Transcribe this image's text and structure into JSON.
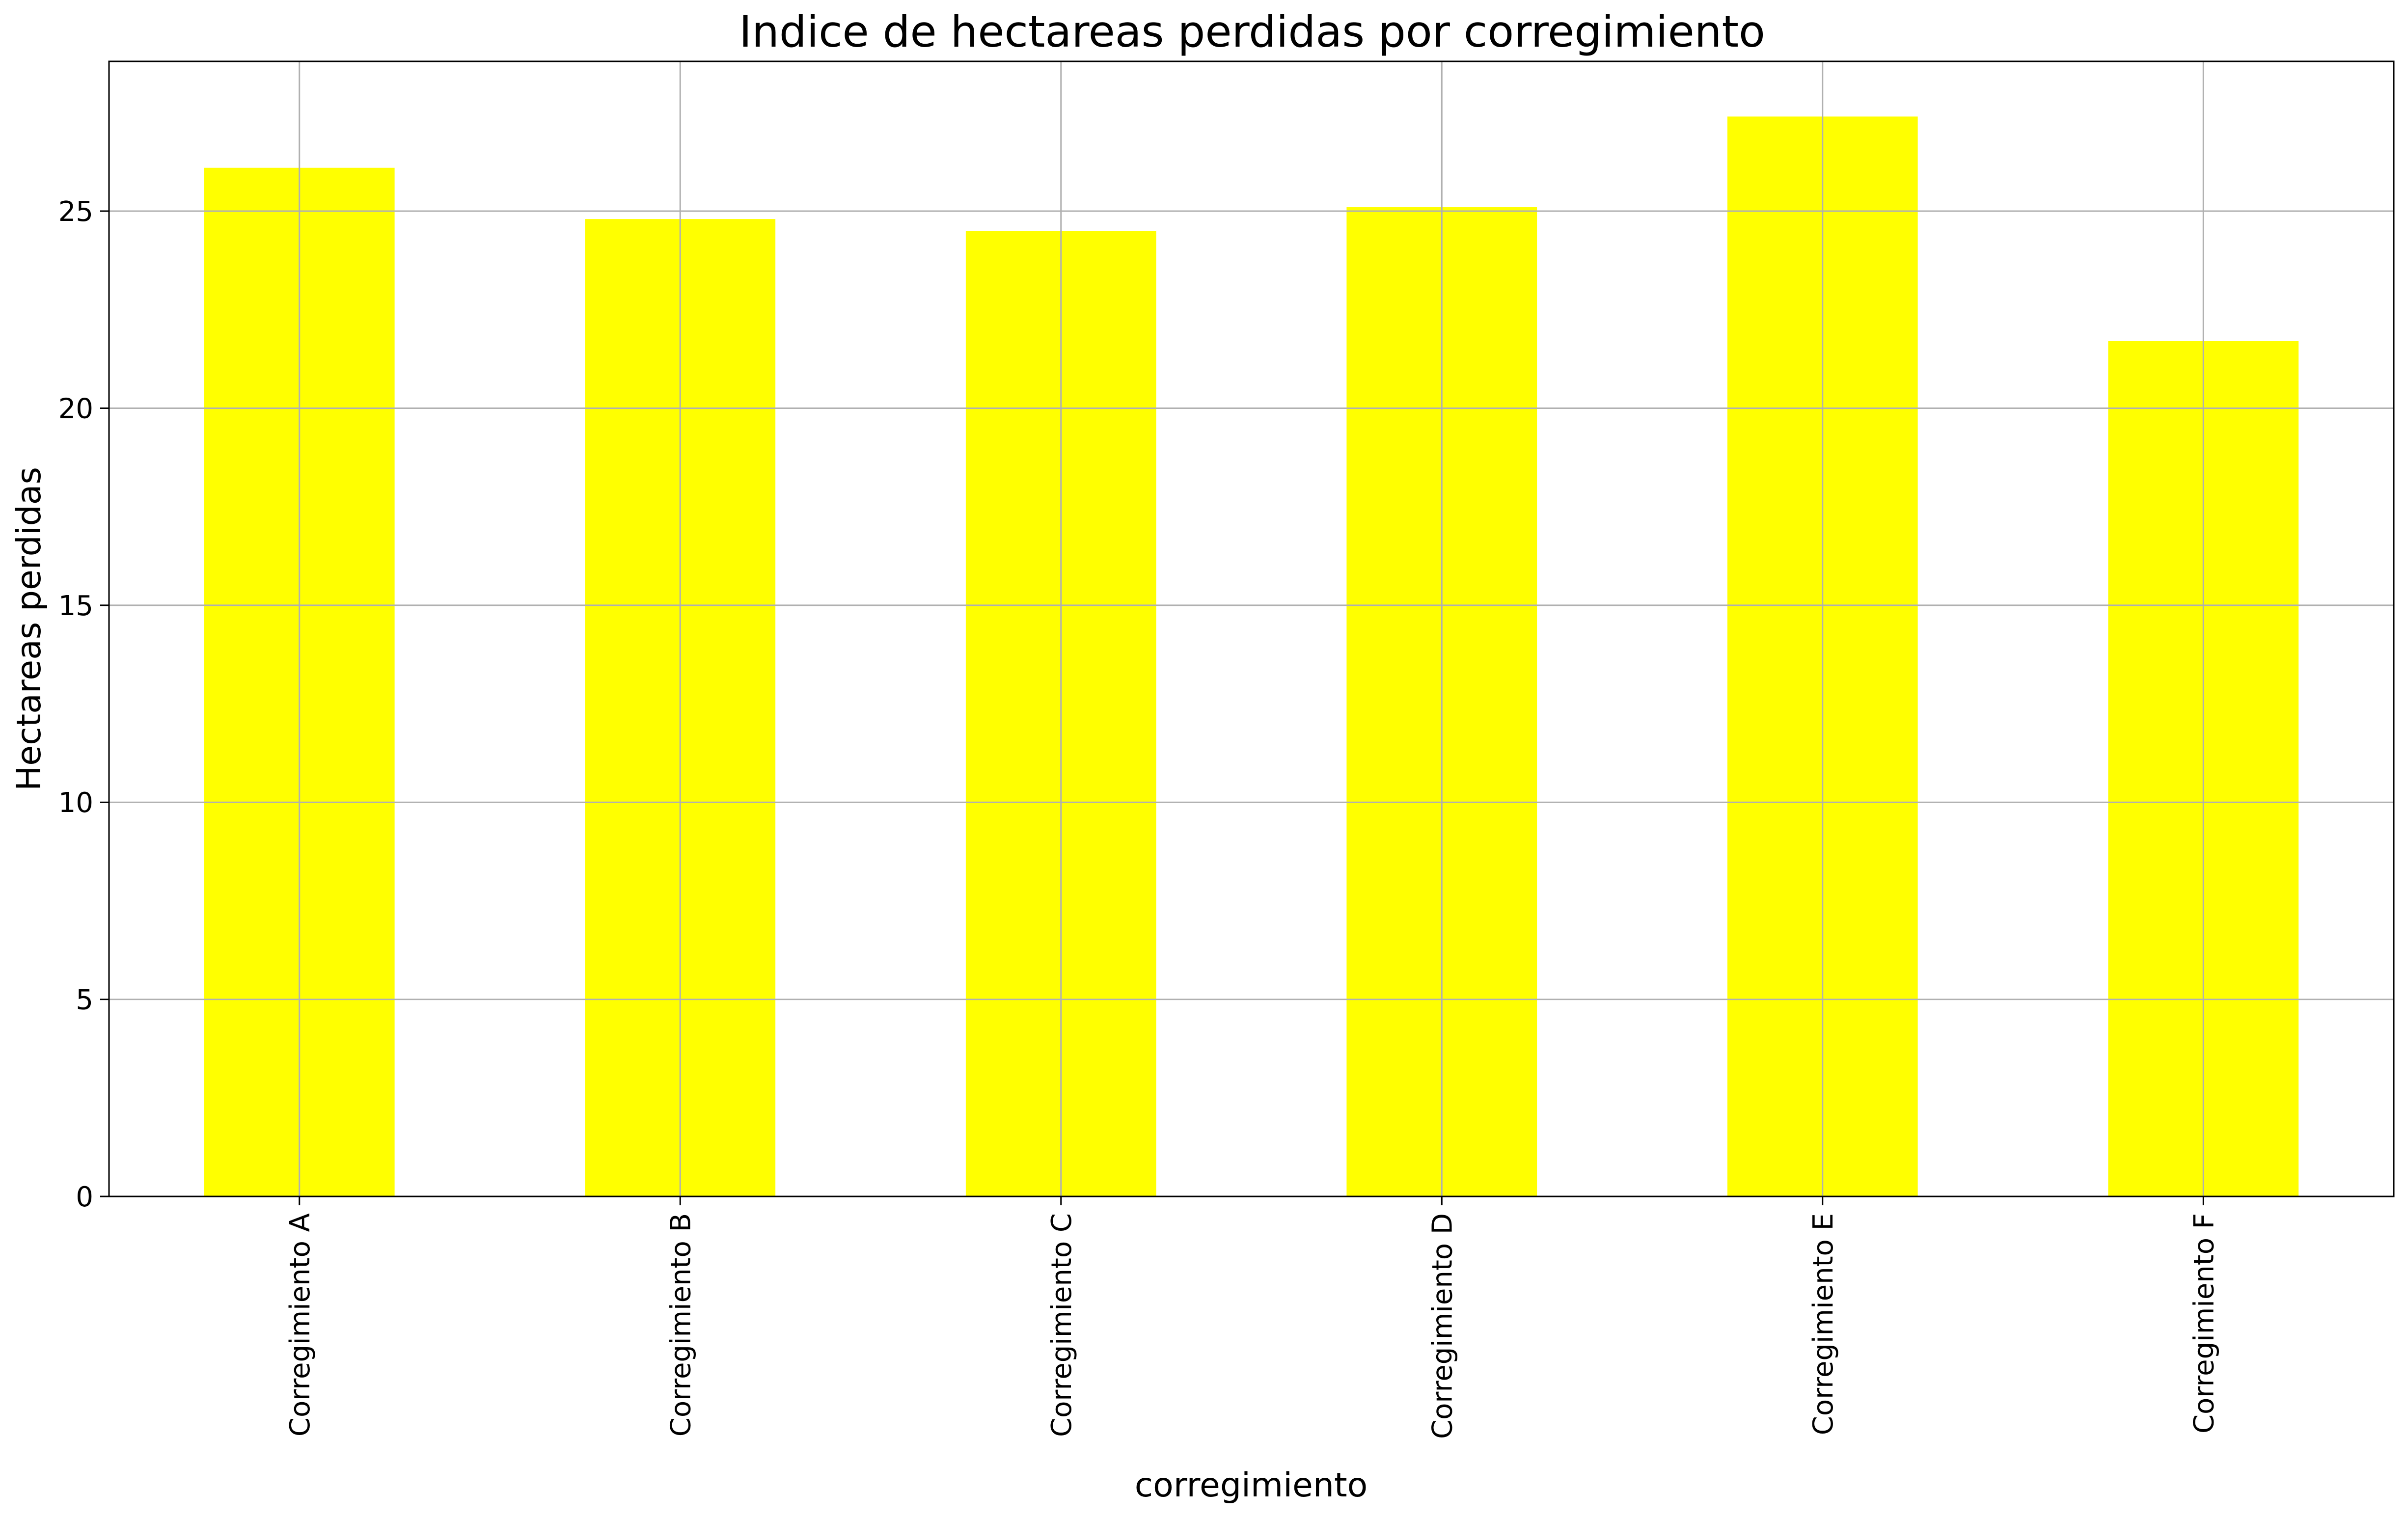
{
  "chart_data": {
    "type": "bar",
    "title": "Indice de hectareas perdidas por corregimiento",
    "xlabel": "corregimiento",
    "ylabel": "Hectareas perdidas",
    "categories": [
      "Corregimiento A",
      "Corregimiento B",
      "Corregimiento C",
      "Corregimiento D",
      "Corregimiento E",
      "Corregimiento F"
    ],
    "values": [
      26.1,
      24.8,
      24.5,
      25.1,
      27.4,
      21.7
    ],
    "ylim": [
      0,
      28.8
    ],
    "yticks": [
      0,
      5,
      10,
      15,
      20,
      25
    ],
    "grid": true,
    "bar_color": "#ffff00",
    "grid_color": "#b0b0b0"
  }
}
